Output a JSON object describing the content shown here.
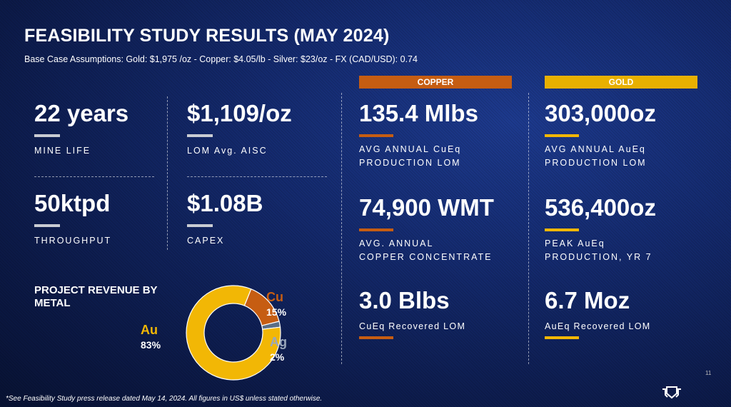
{
  "title": "FEASIBILITY STUDY RESULTS (MAY 2024)",
  "subtitle": "Base Case Assumptions: Gold: $1,975 /oz - Copper: $4.05/lb - Silver: $23/oz - FX (CAD/USD): 0.74",
  "colors": {
    "copper": "#c65d12",
    "gold": "#f2b705",
    "silver": "#5a6e86",
    "bg": "#142a6e"
  },
  "left": [
    {
      "value": "22 years",
      "label": "MINE LIFE"
    },
    {
      "value": "$1,109/oz",
      "label": "LOM Avg. AISC"
    },
    {
      "value": "50ktpd",
      "label": "THROUGHPUT"
    },
    {
      "value": "$1.08B",
      "label": "CAPEX"
    }
  ],
  "copper": {
    "header": "COPPER",
    "items": [
      {
        "value": "135.4 Mlbs",
        "label1": "AVG ANNUAL CuEq",
        "label2": "PRODUCTION LOM"
      },
      {
        "value": "74,900 WMT",
        "label1": "AVG. ANNUAL",
        "label2": "COPPER CONCENTRATE"
      },
      {
        "value": "3.0 Blbs",
        "label1": "CuEq Recovered LOM",
        "label2": ""
      }
    ]
  },
  "gold": {
    "header": "GOLD",
    "items": [
      {
        "value": "303,000oz",
        "label1": "AVG ANNUAL AuEq",
        "label2": "PRODUCTION LOM"
      },
      {
        "value": "536,400oz",
        "label1": "PEAK AuEq",
        "label2": "PRODUCTION, YR 7"
      },
      {
        "value": "6.7 Moz",
        "label1": "AuEq Recovered LOM",
        "label2": ""
      }
    ]
  },
  "chart_data": {
    "type": "pie",
    "title": "PROJECT REVENUE BY METAL",
    "donut": true,
    "slices": [
      {
        "name": "Cu",
        "value": 15,
        "label": "15%"
      },
      {
        "name": "Ag",
        "value": 2,
        "label": "2%"
      },
      {
        "name": "Au",
        "value": 83,
        "label": "83%"
      }
    ]
  },
  "footnote": "*See Feasibility Study press release dated May 14, 2024. All figures in US$ unless stated otherwise.",
  "page_number": "11"
}
